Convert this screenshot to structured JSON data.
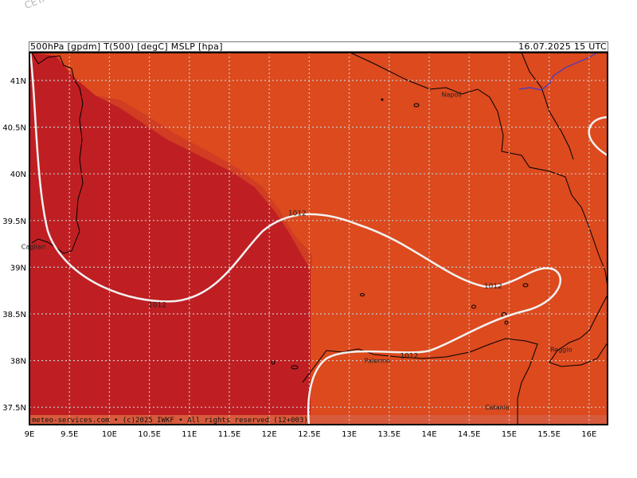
{
  "watermark": "CETA - Inst. f...",
  "header": {
    "fields": "500hPa [gpdm] T(500) [degC] MSLP [hpa]",
    "datetime": "16.07.2025 15 UTC"
  },
  "footer": "meteo-services.com • (c)2025 IWKF • All rights reserved (12+003)",
  "lon_labels": [
    "9E",
    "9.5E",
    "10E",
    "10.5E",
    "11E",
    "11.5E",
    "12E",
    "12.5E",
    "13E",
    "13.5E",
    "14E",
    "14.5E",
    "15E",
    "15.5E",
    "16E"
  ],
  "lat_labels": [
    "41N",
    "40.5N",
    "40N",
    "39.5N",
    "39N",
    "38.5N",
    "38N",
    "37.5N"
  ],
  "cities": [
    {
      "name": "Napoli",
      "lon": 14.28,
      "lat": 40.85
    },
    {
      "name": "Cagliari",
      "lon": 9.05,
      "lat": 39.22
    },
    {
      "name": "Palermo",
      "lon": 13.35,
      "lat": 38.0
    },
    {
      "name": "Reggio",
      "lon": 15.65,
      "lat": 38.12
    },
    {
      "name": "Catania",
      "lon": 14.85,
      "lat": 37.5
    }
  ],
  "isobar_labels": [
    {
      "text": "1012",
      "lon": 12.35,
      "lat": 39.58
    },
    {
      "text": "1012",
      "lon": 10.6,
      "lat": 38.6
    },
    {
      "text": "1012",
      "lon": 14.8,
      "lat": 38.8
    },
    {
      "text": "1012",
      "lon": 13.75,
      "lat": 38.05
    }
  ],
  "colors": {
    "warm_region": "#dc4a1e",
    "hot_region": "#bf1f22",
    "footer_band": "#d85a3c",
    "isobar": "#f2f2f2",
    "coast": "#000000",
    "grid": "#c8c8c8"
  }
}
